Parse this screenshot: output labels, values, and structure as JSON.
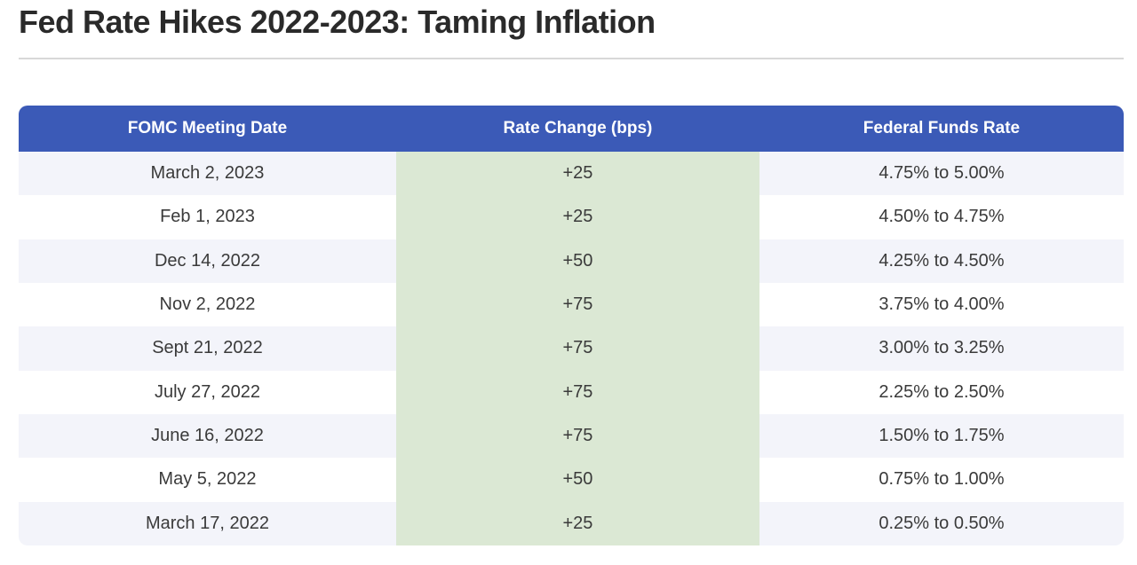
{
  "title": "Fed Rate Hikes 2022-2023: Taming Inflation",
  "colors": {
    "title_text": "#2a2a2a",
    "divider": "#d8d8d8",
    "header_bg": "#3b5ab7",
    "header_text": "#ffffff",
    "stripe_bg": "#f3f4fa",
    "row_bg": "#ffffff",
    "rate_change_bg": "#dbe8d4",
    "cell_text": "#3a3a3a"
  },
  "chart_data": {
    "type": "table",
    "title": "Fed Rate Hikes 2022-2023: Taming Inflation",
    "columns": [
      "FOMC Meeting Date",
      "Rate Change (bps)",
      "Federal Funds Rate"
    ],
    "rows": [
      {
        "date": "March 2, 2023",
        "change_bps": "+25",
        "fed_funds_rate": "4.75% to 5.00%"
      },
      {
        "date": "Feb 1, 2023",
        "change_bps": "+25",
        "fed_funds_rate": "4.50% to 4.75%"
      },
      {
        "date": "Dec 14, 2022",
        "change_bps": "+50",
        "fed_funds_rate": "4.25% to 4.50%"
      },
      {
        "date": "Nov 2, 2022",
        "change_bps": "+75",
        "fed_funds_rate": "3.75% to 4.00%"
      },
      {
        "date": "Sept 21, 2022",
        "change_bps": "+75",
        "fed_funds_rate": "3.00% to 3.25%"
      },
      {
        "date": "July 27, 2022",
        "change_bps": "+75",
        "fed_funds_rate": "2.25% to 2.50%"
      },
      {
        "date": "June 16, 2022",
        "change_bps": "+75",
        "fed_funds_rate": "1.50% to 1.75%"
      },
      {
        "date": "May 5, 2022",
        "change_bps": "+50",
        "fed_funds_rate": "0.75% to 1.00%"
      },
      {
        "date": "March 17, 2022",
        "change_bps": "+25",
        "fed_funds_rate": "0.25% to 0.50%"
      }
    ]
  }
}
